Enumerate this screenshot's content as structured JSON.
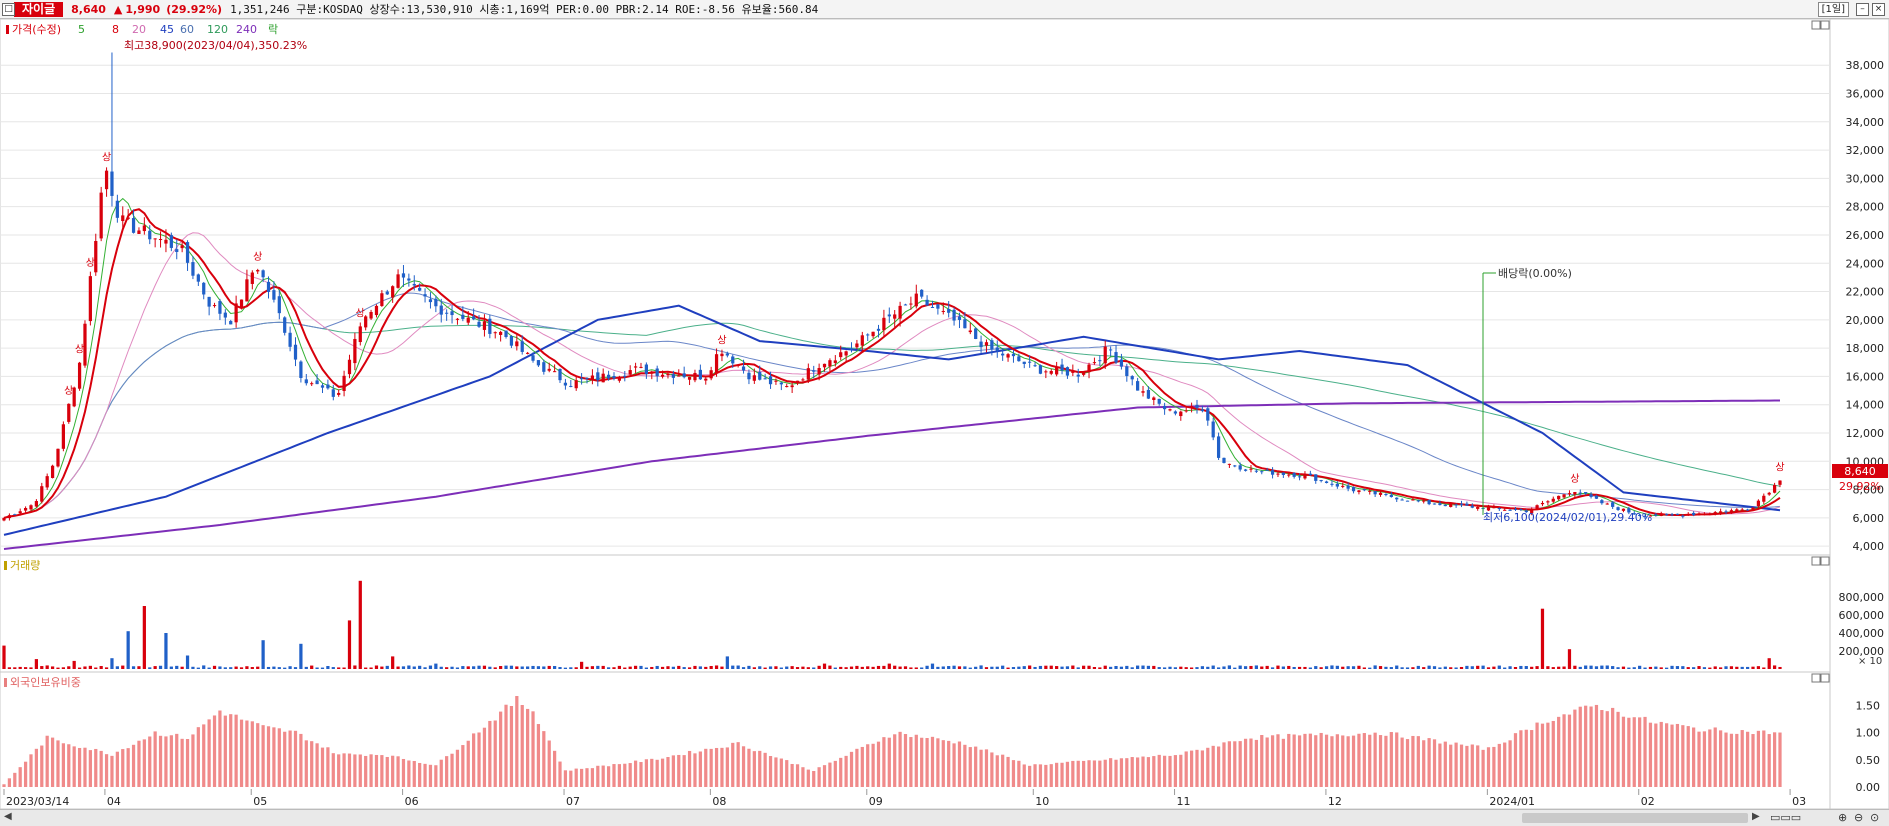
{
  "header": {
    "stock_name": "자이글",
    "price": "8,640",
    "change_arrow": "up-arrow-icon",
    "change": "1,990",
    "change_pct": "(29.92%)",
    "stats": "1,351,246  구분:KOSDAQ 상장수:13,530,910 시총:1,169억 PER:0.00 PBR:2.14 ROE:-8.56 유보율:560.84",
    "period_button": "[1일]",
    "accent_color": "#d8000c"
  },
  "price_panel": {
    "legend": {
      "price_label": "가격(수정)",
      "ma_labels": [
        "5",
        "8",
        "20",
        "45",
        "60",
        "120",
        "240"
      ],
      "lock_label": "락"
    },
    "y_ticks": [
      "38,000",
      "36,000",
      "34,000",
      "32,000",
      "30,000",
      "28,000",
      "26,000",
      "24,000",
      "22,000",
      "20,000",
      "18,000",
      "16,000",
      "14,000",
      "12,000",
      "10,000",
      "8,000",
      "6,000",
      "4,000"
    ],
    "high_annotation": "최고38,900(2023/04/04),350.23%",
    "low_annotation": "최저6,100(2024/02/01),29.40%",
    "dividend_annotation": "배당락(0.00%)",
    "upper_limit_marker": "상",
    "last_price_tag": "8,640",
    "last_pct_tag": "29.92%"
  },
  "volume_panel": {
    "title": "거래량",
    "y_ticks": [
      "800,000",
      "600,000",
      "400,000",
      "200,000"
    ],
    "unit": "× 10"
  },
  "foreign_panel": {
    "title": "외국인보유비중",
    "y_ticks": [
      "1.50",
      "1.00",
      "0.50",
      "0.00"
    ]
  },
  "x_axis": {
    "labels": [
      "2023/03/14",
      "04",
      "05",
      "06",
      "07",
      "08",
      "09",
      "10",
      "11",
      "12",
      "2024/01",
      "02",
      "03"
    ]
  },
  "chart_data": {
    "type": "candlestick",
    "period": "daily",
    "ylim": [
      3800,
      39500
    ],
    "high": {
      "date": "2023/04/04",
      "value": 38900,
      "pct": "350.23%"
    },
    "low": {
      "date": "2024/02/01",
      "value": 6100,
      "pct": "29.40%"
    },
    "close_path": [
      [
        "2023/03/14",
        6000
      ],
      [
        "2023/03/20",
        7000
      ],
      [
        "2023/03/24",
        10000
      ],
      [
        "2023/03/29",
        17000
      ],
      [
        "2023/04/03",
        31000
      ],
      [
        "2023/04/06",
        27000
      ],
      [
        "2023/04/12",
        26000
      ],
      [
        "2023/04/18",
        25000
      ],
      [
        "2023/04/24",
        21000
      ],
      [
        "2023/04/28",
        20000
      ],
      [
        "2023/05/03",
        24000
      ],
      [
        "2023/05/08",
        20000
      ],
      [
        "2023/05/12",
        16000
      ],
      [
        "2023/05/19",
        14500
      ],
      [
        "2023/05/24",
        20000
      ],
      [
        "2023/05/31",
        23000
      ],
      [
        "2023/06/07",
        21000
      ],
      [
        "2023/06/14",
        20000
      ],
      [
        "2023/06/21",
        19000
      ],
      [
        "2023/06/27",
        17000
      ],
      [
        "2023/07/04",
        15500
      ],
      [
        "2023/07/11",
        16000
      ],
      [
        "2023/07/17",
        16500
      ],
      [
        "2023/07/24",
        16200
      ],
      [
        "2023/07/31",
        16000
      ],
      [
        "2023/08/03",
        18000
      ],
      [
        "2023/08/09",
        16000
      ],
      [
        "2023/08/16",
        15200
      ],
      [
        "2023/08/23",
        17000
      ],
      [
        "2023/08/29",
        18000
      ],
      [
        "2023/09/05",
        20000
      ],
      [
        "2023/09/11",
        21500
      ],
      [
        "2023/09/18",
        20000
      ],
      [
        "2023/09/25",
        18000
      ],
      [
        "2023/10/05",
        16500
      ],
      [
        "2023/10/13",
        16200
      ],
      [
        "2023/10/19",
        18000
      ],
      [
        "2023/10/25",
        15000
      ],
      [
        "2023/10/31",
        13500
      ],
      [
        "2023/11/07",
        13800
      ],
      [
        "2023/11/10",
        10000
      ],
      [
        "2023/11/17",
        9300
      ],
      [
        "2023/11/27",
        9000
      ],
      [
        "2023/12/06",
        8000
      ],
      [
        "2023/12/14",
        7500
      ],
      [
        "2023/12/22",
        7000
      ],
      [
        "2024/01/02",
        6700
      ],
      [
        "2024/01/10",
        6500
      ],
      [
        "2024/01/19",
        8000
      ],
      [
        "2024/01/25",
        7000
      ],
      [
        "2024/02/01",
        6200
      ],
      [
        "2024/02/08",
        6200
      ],
      [
        "2024/02/16",
        6400
      ],
      [
        "2024/02/23",
        6650
      ],
      [
        "2024/02/29",
        8640
      ]
    ],
    "moving_averages": {
      "ma45_points": [
        [
          0,
          4800
        ],
        [
          30,
          7500
        ],
        [
          60,
          12000
        ],
        [
          90,
          16000
        ],
        [
          110,
          20000
        ],
        [
          125,
          21000
        ],
        [
          140,
          18500
        ],
        [
          160,
          17800
        ],
        [
          175,
          17200
        ],
        [
          200,
          18800
        ],
        [
          225,
          17200
        ],
        [
          240,
          17800
        ],
        [
          260,
          16800
        ],
        [
          285,
          12000
        ],
        [
          300,
          7800
        ],
        [
          330,
          6500
        ]
      ],
      "ma240_points": [
        [
          0,
          3800
        ],
        [
          40,
          5500
        ],
        [
          80,
          7500
        ],
        [
          120,
          10000
        ],
        [
          160,
          11800
        ],
        [
          210,
          13800
        ],
        [
          250,
          14100
        ],
        [
          330,
          14300
        ]
      ]
    },
    "volume_x10": [
      [
        0,
        260000
      ],
      [
        6,
        110000
      ],
      [
        13,
        90000
      ],
      [
        20,
        120000
      ],
      [
        23,
        420000
      ],
      [
        26,
        700000
      ],
      [
        30,
        400000
      ],
      [
        34,
        150000
      ],
      [
        48,
        320000
      ],
      [
        55,
        280000
      ],
      [
        64,
        540000
      ],
      [
        66,
        980000
      ],
      [
        72,
        140000
      ],
      [
        80,
        60000
      ],
      [
        107,
        80000
      ],
      [
        134,
        140000
      ],
      [
        152,
        60000
      ],
      [
        164,
        60000
      ],
      [
        172,
        60000
      ],
      [
        227,
        40000
      ],
      [
        254,
        40000
      ],
      [
        285,
        670000
      ],
      [
        290,
        220000
      ],
      [
        327,
        120000
      ]
    ],
    "foreign_ratio": [
      [
        0,
        0.05
      ],
      [
        8,
        0.9
      ],
      [
        12,
        0.8
      ],
      [
        20,
        0.6
      ],
      [
        28,
        1.0
      ],
      [
        34,
        0.9
      ],
      [
        40,
        1.4
      ],
      [
        48,
        1.1
      ],
      [
        54,
        1.0
      ],
      [
        58,
        0.8
      ],
      [
        62,
        0.6
      ],
      [
        70,
        0.6
      ],
      [
        80,
        0.4
      ],
      [
        95,
        1.6
      ],
      [
        98,
        1.4
      ],
      [
        104,
        0.3
      ],
      [
        120,
        0.5
      ],
      [
        136,
        0.8
      ],
      [
        150,
        0.3
      ],
      [
        165,
        1.0
      ],
      [
        178,
        0.8
      ],
      [
        190,
        0.4
      ],
      [
        218,
        0.6
      ],
      [
        230,
        0.9
      ],
      [
        255,
        1.0
      ],
      [
        275,
        0.7
      ],
      [
        285,
        1.2
      ],
      [
        295,
        1.5
      ],
      [
        305,
        1.2
      ],
      [
        315,
        1.05
      ],
      [
        327,
        1.0
      ]
    ],
    "total_bars": 330
  }
}
